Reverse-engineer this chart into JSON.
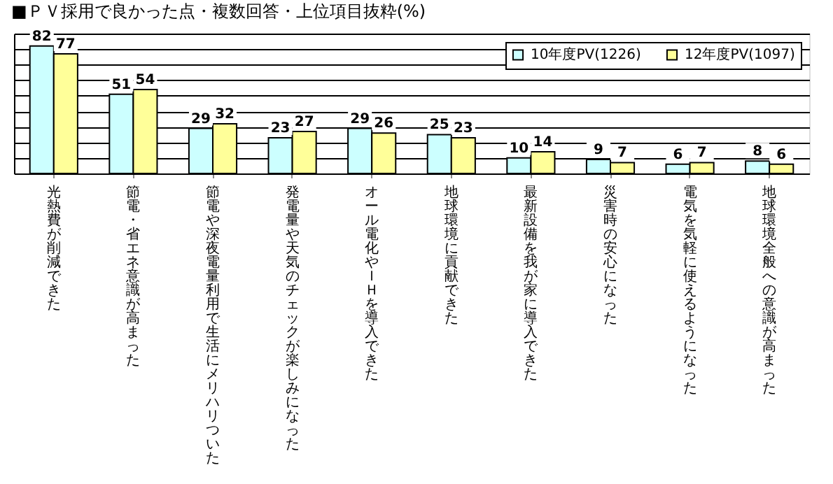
{
  "chart_data": {
    "type": "bar",
    "title": "■ＰＶ採用で良かった点・複数回答・上位項目抜粋(%)",
    "categories": [
      "光熱費が削減できた",
      "節電・省エネ意識が高まった",
      "節電や深夜電量利用で生活にメリハリついた",
      "発電量や天気のチェックが楽しみになった",
      "オール電化やＩＨを導入できた",
      "地球環境に貢献できた",
      "最新設備を我が家に導入できた",
      "災害時の安心になった",
      "電気を気軽に使えるようになった",
      "地球環境全般への意識が高まった"
    ],
    "series": [
      {
        "name": "10年度PV(1226)",
        "color": "#ccffff",
        "values": [
          82,
          51,
          29,
          23,
          29,
          25,
          10,
          9,
          6,
          8
        ]
      },
      {
        "name": "12年度PV(1097)",
        "color": "#ffff99",
        "values": [
          77,
          54,
          32,
          27,
          26,
          23,
          14,
          7,
          7,
          6
        ]
      }
    ],
    "ylim": [
      0,
      90
    ],
    "tick_labels": "x",
    "grid": "y",
    "legend": "top right",
    "data_labels": true
  }
}
